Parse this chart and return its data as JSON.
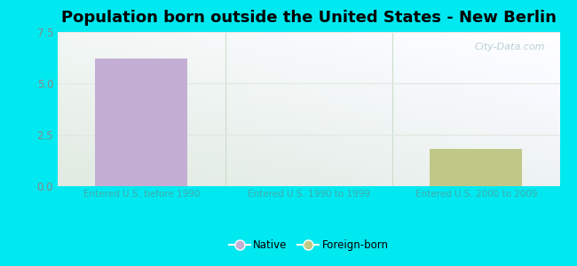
{
  "title": "Population born outside the United States - New Berlin",
  "categories": [
    "Entered U.S. before 1990",
    "Entered U.S. 1990 to 1999",
    "Entered U.S. 2000 to 2009"
  ],
  "native_values": [
    6.2,
    0,
    0
  ],
  "foreign_values": [
    0,
    0,
    1.8
  ],
  "native_color": "#c4aed4",
  "foreign_color": "#c0c888",
  "ylim": [
    0,
    7.5
  ],
  "yticks": [
    0,
    2.5,
    5,
    7.5
  ],
  "bg_outer": "#00e8f0",
  "bg_plot_topleft": "#e0f0e8",
  "bg_plot_topright": "#f0f8f4",
  "bg_plot_bottom": "#d8eed8",
  "title_fontsize": 13,
  "tick_label_color": "#44aaaa",
  "ytick_label_color": "#888888",
  "watermark": "City-Data.com",
  "bar_width": 0.55,
  "grid_color": "#e0e8e0",
  "grid_linewidth": 0.8
}
